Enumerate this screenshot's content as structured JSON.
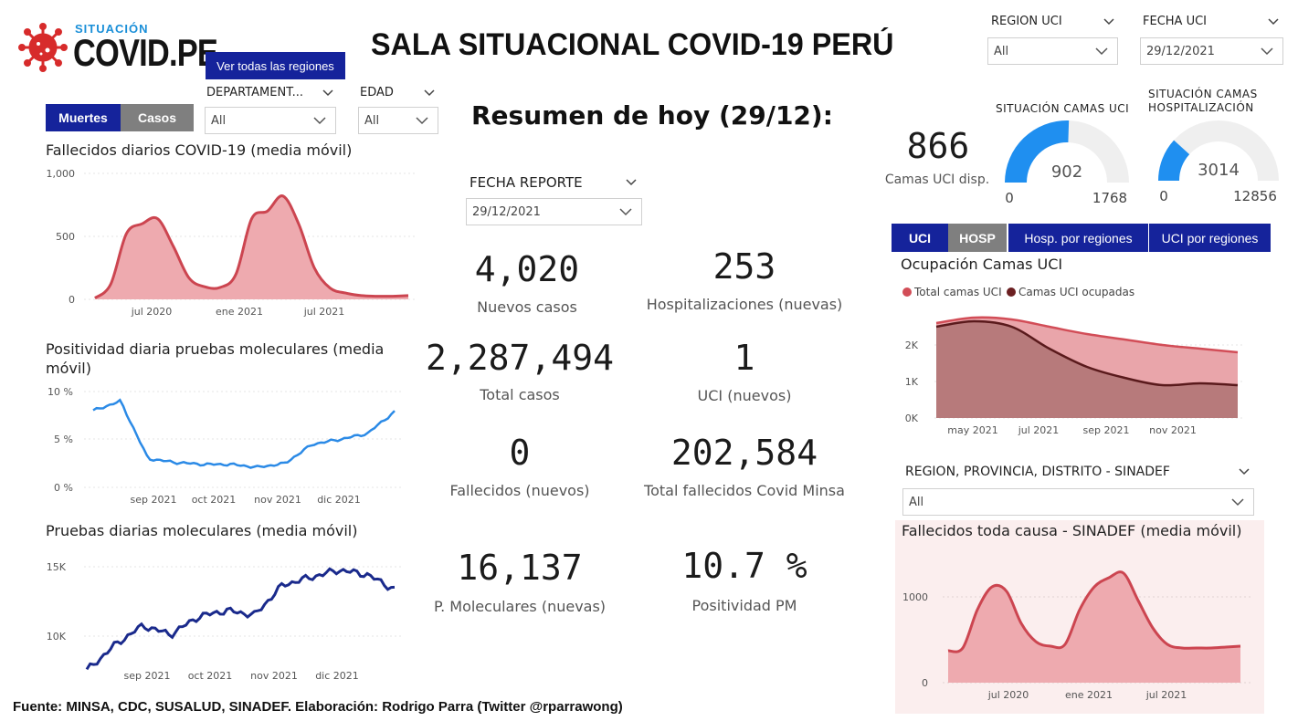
{
  "header": {
    "logo_top": "SITUACIÓN",
    "logo_main": "COVID.PE",
    "title": "SALA SITUACIONAL COVID-19 PERÚ",
    "view_regions_button": "Ver todas las regiones"
  },
  "left_filters": {
    "toggle": [
      "Muertes",
      "Casos"
    ],
    "departamento_label": "DEPARTAMENT...",
    "departamento_value": "All",
    "edad_label": "EDAD",
    "edad_value": "All"
  },
  "top_right_filters": {
    "region_uci_label": "REGION UCI",
    "region_uci_value": "All",
    "fecha_uci_label": "FECHA UCI",
    "fecha_uci_value": "29/12/2021"
  },
  "charts_left": {
    "deaths": {
      "title": "Fallecidos diarios COVID-19 (media móvil)",
      "y_ticks": [
        "1,000",
        "500",
        "0"
      ],
      "x_ticks": [
        "jul 2020",
        "ene 2021",
        "jul 2021"
      ]
    },
    "positivity": {
      "title_line1": "Positividad diaria pruebas moleculares (media",
      "title_line2": "móvil)",
      "y_ticks": [
        "10 %",
        "5 %",
        "0 %"
      ],
      "x_ticks": [
        "sep 2021",
        "oct 2021",
        "nov 2021",
        "dic 2021"
      ]
    },
    "tests": {
      "title": "Pruebas diarias moleculares (media móvil)",
      "y_ticks": [
        "15K",
        "10K"
      ],
      "x_ticks": [
        "sep 2021",
        "oct 2021",
        "nov 2021",
        "dic 2021"
      ]
    }
  },
  "summary": {
    "title": "Resumen de hoy (29/12):",
    "fecha_label": "FECHA REPORTE",
    "fecha_value": "29/12/2021",
    "kpis": [
      {
        "value": "4,020",
        "label": "Nuevos casos"
      },
      {
        "value": "253",
        "label": "Hospitalizaciones (nuevas)"
      },
      {
        "value": "2,287,494",
        "label": "Total casos"
      },
      {
        "value": "1",
        "label": "UCI (nuevos)"
      },
      {
        "value": "0",
        "label": "Fallecidos  (nuevos)"
      },
      {
        "value": "202,584",
        "label": "Total fallecidos Covid Minsa"
      },
      {
        "value": "16,137",
        "label": "P. Moleculares (nuevas)"
      },
      {
        "value": "10.7 %",
        "label": "Positividad PM"
      }
    ]
  },
  "beds": {
    "uci_available_value": "866",
    "uci_available_label": "Camas UCI disp.",
    "gauge_uci": {
      "title": "SITUACIÓN CAMAS UCI",
      "value": 902,
      "min": 0,
      "max": 1768,
      "value_label": "902",
      "min_label": "0",
      "max_label": "1768"
    },
    "gauge_hosp": {
      "title_line1": "SITUACIÓN CAMAS",
      "title_line2": "HOSPITALIZACIÓN",
      "value": 3014,
      "min": 0,
      "max": 12856,
      "value_label": "3014",
      "min_label": "0",
      "max_label": "12856"
    },
    "colors": {
      "gauge_fill": "#1f8ff0",
      "gauge_track": "#efefef"
    }
  },
  "tabs_right": [
    "UCI",
    "HOSP",
    "Hosp. por regiones",
    "UCI por regiones"
  ],
  "uci_chart": {
    "title": "Ocupación Camas UCI",
    "legend": [
      "Total camas UCI",
      "Camas UCI ocupadas"
    ],
    "y_ticks": [
      "2K",
      "1K",
      "0K"
    ],
    "x_ticks": [
      "may 2021",
      "jul 2021",
      "sep 2021",
      "nov 2021"
    ]
  },
  "sinadef": {
    "filter_label": "REGION, PROVINCIA, DISTRITO - SINADEF",
    "filter_value": "All",
    "title": "Fallecidos toda causa - SINADEF (media móvil)",
    "y_ticks": [
      "1000",
      "0"
    ],
    "x_ticks": [
      "jul 2020",
      "ene 2021",
      "jul 2021"
    ]
  },
  "footer": "Fuente: MINSA, CDC, SUSALUD, SINADEF. Elaboración: Rodrigo Parra (Twitter @rparrawong)",
  "chart_data": [
    {
      "type": "area",
      "title": "Fallecidos diarios COVID-19 (media móvil)",
      "x": [
        "2020-04",
        "2020-05",
        "2020-06",
        "2020-07",
        "2020-08",
        "2020-09",
        "2020-10",
        "2020-11",
        "2020-12",
        "2021-01",
        "2021-02",
        "2021-03",
        "2021-04",
        "2021-05",
        "2021-06",
        "2021-07",
        "2021-08",
        "2021-09",
        "2021-10",
        "2021-11",
        "2021-12"
      ],
      "values": [
        10,
        120,
        520,
        600,
        640,
        420,
        170,
        100,
        95,
        200,
        640,
        700,
        820,
        600,
        250,
        90,
        50,
        30,
        25,
        25,
        30
      ],
      "ylim": [
        0,
        1000
      ],
      "color": "#d24d57"
    },
    {
      "type": "line",
      "title": "Positividad diaria pruebas moleculares (media móvil)",
      "x": [
        "2021-08-20",
        "2021-08-25",
        "2021-09-01",
        "2021-09-15",
        "2021-10-01",
        "2021-10-15",
        "2021-11-01",
        "2021-11-15",
        "2021-12-01",
        "2021-12-10",
        "2021-12-20",
        "2021-12-29"
      ],
      "values": [
        8.0,
        9.0,
        3.0,
        2.6,
        2.4,
        2.4,
        2.1,
        2.5,
        4.5,
        5.0,
        5.6,
        7.9
      ],
      "ylim": [
        0,
        10
      ],
      "unit": "%",
      "color": "#2b8ae6"
    },
    {
      "type": "line",
      "title": "Pruebas diarias moleculares (media móvil)",
      "x": [
        "2021-08-20",
        "2021-09-01",
        "2021-09-15",
        "2021-10-01",
        "2021-10-15",
        "2021-11-01",
        "2021-11-10",
        "2021-11-20",
        "2021-12-01",
        "2021-12-10",
        "2021-12-20",
        "2021-12-29"
      ],
      "values": [
        8800,
        10500,
        11800,
        11200,
        12400,
        12800,
        12500,
        14500,
        15000,
        15500,
        15200,
        14200
      ],
      "ylim": [
        8000,
        16500
      ],
      "color": "#1a2a8c"
    },
    {
      "type": "area",
      "title": "Ocupación Camas UCI",
      "x": [
        "2021-04",
        "2021-05",
        "2021-06",
        "2021-07",
        "2021-08",
        "2021-09",
        "2021-10",
        "2021-11",
        "2021-12"
      ],
      "series": [
        {
          "name": "Total camas UCI",
          "values": [
            2600,
            2750,
            2700,
            2500,
            2300,
            2150,
            2000,
            1900,
            1800
          ],
          "color": "#d24d57"
        },
        {
          "name": "Camas UCI ocupadas",
          "values": [
            2500,
            2650,
            2500,
            1900,
            1400,
            1100,
            900,
            950,
            900
          ],
          "color": "#6b1f21"
        }
      ],
      "ylim": [
        0,
        3000
      ]
    },
    {
      "type": "area",
      "title": "Fallecidos toda causa - SINADEF (media móvil)",
      "x": [
        "2020-04",
        "2020-05",
        "2020-06",
        "2020-07",
        "2020-08",
        "2020-09",
        "2020-10",
        "2020-11",
        "2020-12",
        "2021-01",
        "2021-02",
        "2021-03",
        "2021-04",
        "2021-05",
        "2021-06",
        "2021-07",
        "2021-08",
        "2021-09",
        "2021-10",
        "2021-11",
        "2021-12"
      ],
      "values": [
        350,
        380,
        800,
        1050,
        1000,
        650,
        450,
        400,
        420,
        800,
        1050,
        1150,
        1200,
        900,
        600,
        420,
        380,
        380,
        380,
        390,
        400
      ],
      "ylim": [
        0,
        1300
      ],
      "color": "#d24d57"
    }
  ]
}
